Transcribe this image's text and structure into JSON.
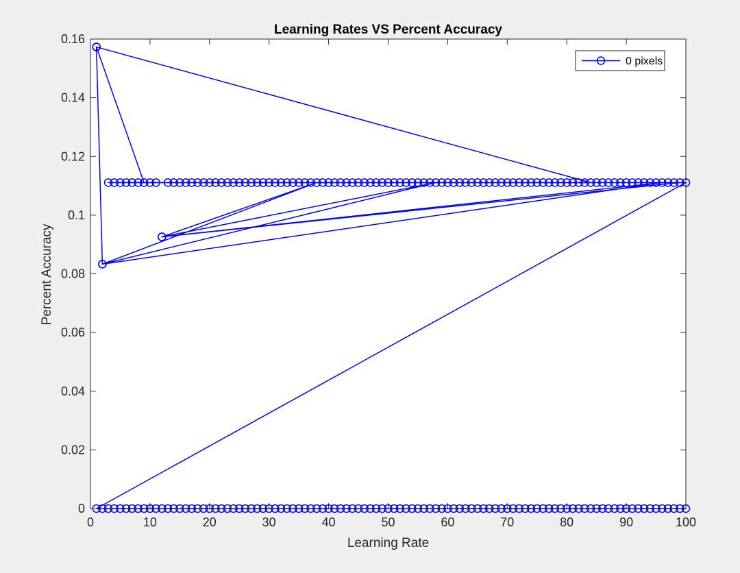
{
  "chart_data": {
    "type": "line",
    "title": "Learning Rates VS Percent Accuracy",
    "xlabel": "Learning Rate",
    "ylabel": "Percent Accuracy",
    "xlim": [
      0,
      100
    ],
    "ylim": [
      0,
      0.16
    ],
    "xticks": [
      0,
      10,
      20,
      30,
      40,
      50,
      60,
      70,
      80,
      90,
      100
    ],
    "yticks": [
      0,
      0.02,
      0.04,
      0.06,
      0.08,
      0.1,
      0.12,
      0.14,
      0.16
    ],
    "ytick_labels": [
      "0",
      "0.02",
      "0.04",
      "0.06",
      "0.08",
      "0.1",
      "0.12",
      "0.14",
      "0.16"
    ],
    "grid": false,
    "legend_position": "top-right",
    "series": [
      {
        "name": "0 pixels",
        "color": "#0000ff",
        "marker": "circle",
        "points": [
          [
            1,
            0.1573
          ],
          [
            84,
            0.1111
          ],
          [
            9,
            0.1111
          ],
          [
            1,
            0.1573
          ],
          [
            2,
            0.0833
          ],
          [
            38,
            0.1111
          ],
          [
            12,
            0.0926
          ],
          [
            58,
            0.1111
          ],
          [
            2,
            0.0833
          ],
          [
            96,
            0.1111
          ],
          [
            12,
            0.0926
          ],
          [
            99,
            0.1111
          ],
          [
            3,
            0.1111
          ],
          [
            4,
            0.1111
          ],
          [
            5,
            0.1111
          ],
          [
            6,
            0.1111
          ],
          [
            7,
            0.1111
          ],
          [
            8,
            0.1111
          ],
          [
            10,
            0.1111
          ],
          [
            11,
            0.1111
          ],
          [
            13,
            0.1111
          ],
          [
            14,
            0.1111
          ],
          [
            15,
            0.1111
          ],
          [
            16,
            0.1111
          ],
          [
            17,
            0.1111
          ],
          [
            18,
            0.1111
          ],
          [
            19,
            0.1111
          ],
          [
            20,
            0.1111
          ],
          [
            21,
            0.1111
          ],
          [
            22,
            0.1111
          ],
          [
            23,
            0.1111
          ],
          [
            24,
            0.1111
          ],
          [
            25,
            0.1111
          ],
          [
            26,
            0.1111
          ],
          [
            27,
            0.1111
          ],
          [
            28,
            0.1111
          ],
          [
            29,
            0.1111
          ],
          [
            30,
            0.1111
          ],
          [
            31,
            0.1111
          ],
          [
            32,
            0.1111
          ],
          [
            33,
            0.1111
          ],
          [
            34,
            0.1111
          ],
          [
            35,
            0.1111
          ],
          [
            36,
            0.1111
          ],
          [
            37,
            0.1111
          ],
          [
            39,
            0.1111
          ],
          [
            40,
            0.1111
          ],
          [
            41,
            0.1111
          ],
          [
            42,
            0.1111
          ],
          [
            43,
            0.1111
          ],
          [
            44,
            0.1111
          ],
          [
            45,
            0.1111
          ],
          [
            46,
            0.1111
          ],
          [
            47,
            0.1111
          ],
          [
            48,
            0.1111
          ],
          [
            49,
            0.1111
          ],
          [
            50,
            0.1111
          ],
          [
            51,
            0.1111
          ],
          [
            52,
            0.1111
          ],
          [
            53,
            0.1111
          ],
          [
            54,
            0.1111
          ],
          [
            55,
            0.1111
          ],
          [
            56,
            0.1111
          ],
          [
            57,
            0.1111
          ],
          [
            59,
            0.1111
          ],
          [
            60,
            0.1111
          ],
          [
            61,
            0.1111
          ],
          [
            62,
            0.1111
          ],
          [
            63,
            0.1111
          ],
          [
            64,
            0.1111
          ],
          [
            65,
            0.1111
          ],
          [
            66,
            0.1111
          ],
          [
            67,
            0.1111
          ],
          [
            68,
            0.1111
          ],
          [
            69,
            0.1111
          ],
          [
            70,
            0.1111
          ],
          [
            71,
            0.1111
          ],
          [
            72,
            0.1111
          ],
          [
            73,
            0.1111
          ],
          [
            74,
            0.1111
          ],
          [
            75,
            0.1111
          ],
          [
            76,
            0.1111
          ],
          [
            77,
            0.1111
          ],
          [
            78,
            0.1111
          ],
          [
            79,
            0.1111
          ],
          [
            80,
            0.1111
          ],
          [
            81,
            0.1111
          ],
          [
            82,
            0.1111
          ],
          [
            83,
            0.1111
          ],
          [
            85,
            0.1111
          ],
          [
            86,
            0.1111
          ],
          [
            87,
            0.1111
          ],
          [
            88,
            0.1111
          ],
          [
            89,
            0.1111
          ],
          [
            90,
            0.1111
          ],
          [
            91,
            0.1111
          ],
          [
            92,
            0.1111
          ],
          [
            93,
            0.1111
          ],
          [
            94,
            0.1111
          ],
          [
            95,
            0.1111
          ],
          [
            97,
            0.1111
          ],
          [
            98,
            0.1111
          ],
          [
            100,
            0.1111
          ],
          [
            1,
            0
          ],
          [
            2,
            0
          ],
          [
            3,
            0
          ],
          [
            4,
            0
          ],
          [
            5,
            0
          ],
          [
            6,
            0
          ],
          [
            7,
            0
          ],
          [
            8,
            0
          ],
          [
            9,
            0
          ],
          [
            10,
            0
          ],
          [
            11,
            0
          ],
          [
            12,
            0
          ],
          [
            13,
            0
          ],
          [
            14,
            0
          ],
          [
            15,
            0
          ],
          [
            16,
            0
          ],
          [
            17,
            0
          ],
          [
            18,
            0
          ],
          [
            19,
            0
          ],
          [
            20,
            0
          ],
          [
            21,
            0
          ],
          [
            22,
            0
          ],
          [
            23,
            0
          ],
          [
            24,
            0
          ],
          [
            25,
            0
          ],
          [
            26,
            0
          ],
          [
            27,
            0
          ],
          [
            28,
            0
          ],
          [
            29,
            0
          ],
          [
            30,
            0
          ],
          [
            31,
            0
          ],
          [
            32,
            0
          ],
          [
            33,
            0
          ],
          [
            34,
            0
          ],
          [
            35,
            0
          ],
          [
            36,
            0
          ],
          [
            37,
            0
          ],
          [
            38,
            0
          ],
          [
            39,
            0
          ],
          [
            40,
            0
          ],
          [
            41,
            0
          ],
          [
            42,
            0
          ],
          [
            43,
            0
          ],
          [
            44,
            0
          ],
          [
            45,
            0
          ],
          [
            46,
            0
          ],
          [
            47,
            0
          ],
          [
            48,
            0
          ],
          [
            49,
            0
          ],
          [
            50,
            0
          ],
          [
            51,
            0
          ],
          [
            52,
            0
          ],
          [
            53,
            0
          ],
          [
            54,
            0
          ],
          [
            55,
            0
          ],
          [
            56,
            0
          ],
          [
            57,
            0
          ],
          [
            58,
            0
          ],
          [
            59,
            0
          ],
          [
            60,
            0
          ],
          [
            61,
            0
          ],
          [
            62,
            0
          ],
          [
            63,
            0
          ],
          [
            64,
            0
          ],
          [
            65,
            0
          ],
          [
            66,
            0
          ],
          [
            67,
            0
          ],
          [
            68,
            0
          ],
          [
            69,
            0
          ],
          [
            70,
            0
          ],
          [
            71,
            0
          ],
          [
            72,
            0
          ],
          [
            73,
            0
          ],
          [
            74,
            0
          ],
          [
            75,
            0
          ],
          [
            76,
            0
          ],
          [
            77,
            0
          ],
          [
            78,
            0
          ],
          [
            79,
            0
          ],
          [
            80,
            0
          ],
          [
            81,
            0
          ],
          [
            82,
            0
          ],
          [
            83,
            0
          ],
          [
            84,
            0
          ],
          [
            85,
            0
          ],
          [
            86,
            0
          ],
          [
            87,
            0
          ],
          [
            88,
            0
          ],
          [
            89,
            0
          ],
          [
            90,
            0
          ],
          [
            91,
            0
          ],
          [
            92,
            0
          ],
          [
            93,
            0
          ],
          [
            94,
            0
          ],
          [
            95,
            0
          ],
          [
            96,
            0
          ],
          [
            97,
            0
          ],
          [
            98,
            0
          ],
          [
            99,
            0
          ],
          [
            100,
            0
          ]
        ]
      }
    ]
  }
}
